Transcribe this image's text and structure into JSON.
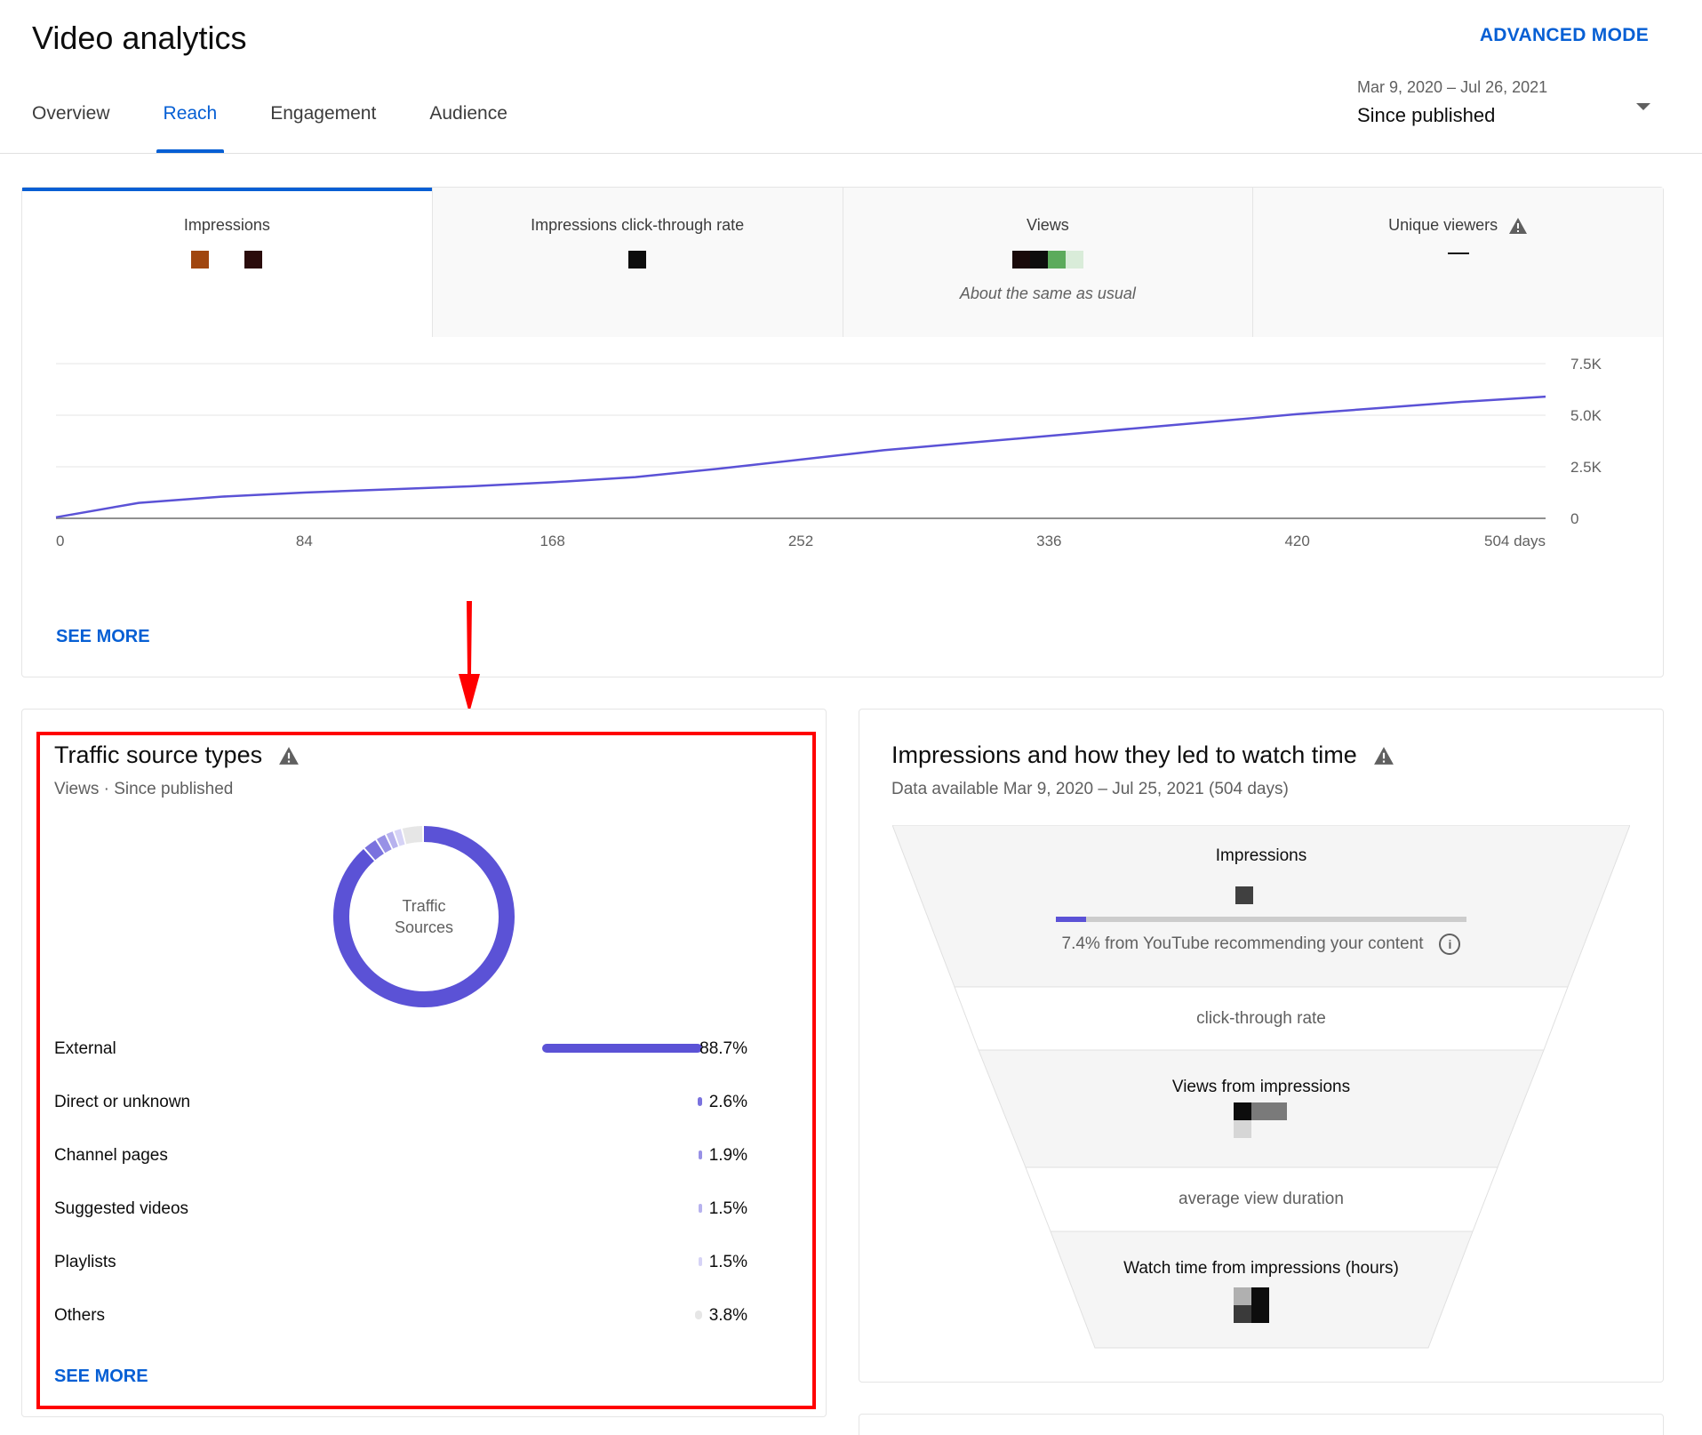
{
  "header": {
    "title": "Video analytics",
    "advanced_mode": "ADVANCED MODE",
    "tabs": [
      {
        "label": "Overview"
      },
      {
        "label": "Reach"
      },
      {
        "label": "Engagement"
      },
      {
        "label": "Audience"
      }
    ],
    "active_tab": "Reach",
    "date_range": "Mar 9, 2020 – Jul 26, 2021",
    "date_label": "Since published"
  },
  "reach": {
    "metrics": [
      {
        "label": "Impressions"
      },
      {
        "label": "Impressions click-through rate"
      },
      {
        "label": "Views",
        "note": "About the same as usual"
      },
      {
        "label": "Unique viewers",
        "value": "—"
      }
    ],
    "see_more": "SEE MORE"
  },
  "chart_data": {
    "type": "line",
    "x": [
      0,
      28,
      56,
      84,
      112,
      140,
      168,
      196,
      224,
      252,
      280,
      308,
      336,
      364,
      392,
      420,
      448,
      476,
      504
    ],
    "series": [
      {
        "values": [
          50,
          750,
          1050,
          1250,
          1400,
          1550,
          1750,
          2000,
          2400,
          2850,
          3300,
          3650,
          4000,
          4350,
          4700,
          5050,
          5350,
          5650,
          5900
        ]
      }
    ],
    "x_ticks": [
      "0",
      "84",
      "168",
      "252",
      "336",
      "420",
      "504 days"
    ],
    "y_ticks": [
      "0",
      "2.5K",
      "5.0K",
      "7.5K"
    ],
    "xlim": [
      0,
      504
    ],
    "ylim": [
      0,
      7500
    ],
    "grid": true,
    "color": "#5b52d6"
  },
  "annotation": {
    "color": "#ff0000"
  },
  "traffic": {
    "title": "Traffic source types",
    "subtitle": "Views · Since published",
    "donut_center_line1": "Traffic",
    "donut_center_line2": "Sources",
    "sources": [
      {
        "name": "External",
        "pct_label": "88.7%",
        "pct": 88.7,
        "color": "#5b52d6"
      },
      {
        "name": "Direct or unknown",
        "pct_label": "2.6%",
        "pct": 2.6,
        "color": "#7a72de"
      },
      {
        "name": "Channel pages",
        "pct_label": "1.9%",
        "pct": 1.9,
        "color": "#9891e6"
      },
      {
        "name": "Suggested videos",
        "pct_label": "1.5%",
        "pct": 1.5,
        "color": "#b7b2ee"
      },
      {
        "name": "Playlists",
        "pct_label": "1.5%",
        "pct": 1.5,
        "color": "#d6d3f6"
      },
      {
        "name": "Others",
        "pct_label": "3.8%",
        "pct": 3.8,
        "color": "#e6e6e6"
      }
    ],
    "see_more": "SEE MORE"
  },
  "funnel": {
    "title": "Impressions and how they led to watch time",
    "subtitle": "Data available Mar 9, 2020 – Jul 25, 2021 (504 days)",
    "impressions_label": "Impressions",
    "recommend_note": "7.4% from YouTube recommending your content",
    "recommend_pct": 7.4,
    "ctr_label": "click-through rate",
    "views_label": "Views from impressions",
    "avd_label": "average view duration",
    "watch_label": "Watch time from impressions (hours)"
  }
}
